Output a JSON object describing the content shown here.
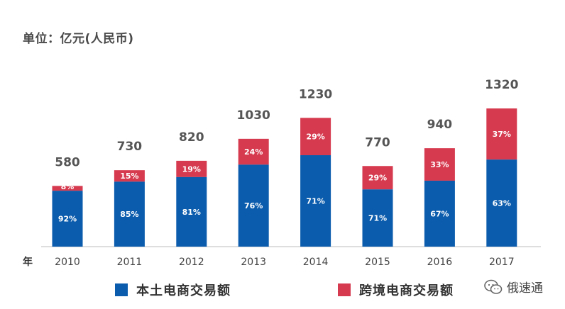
{
  "header": {
    "unit_label": "单位：亿元(人民币)"
  },
  "chart_data": {
    "type": "bar",
    "stacked": true,
    "x_axis_label": "年",
    "categories": [
      "2010",
      "2011",
      "2012",
      "2013",
      "2014",
      "2015",
      "2016",
      "2017"
    ],
    "totals": [
      580,
      730,
      820,
      1030,
      1230,
      770,
      940,
      1320
    ],
    "total_labels": [
      "580",
      "730",
      "820",
      "1030",
      "1230",
      "770",
      "940",
      "1320"
    ],
    "series": [
      {
        "name": "本土电商交易额",
        "color": "#0b5cad",
        "shares": [
          92,
          85,
          81,
          76,
          71,
          71,
          67,
          63
        ],
        "labels": [
          "92%",
          "85%",
          "81%",
          "76%",
          "71%",
          "71%",
          "67%",
          "63%"
        ]
      },
      {
        "name": "跨境电商交易额",
        "color": "#d63a4f",
        "shares": [
          8,
          15,
          19,
          24,
          29,
          29,
          33,
          37
        ],
        "labels": [
          "8%",
          "15%",
          "19%",
          "24%",
          "29%",
          "29%",
          "33%",
          "37%"
        ]
      }
    ],
    "legend_position": "bottom",
    "grid": false
  },
  "legend": {
    "items": [
      {
        "label": "本土电商交易额",
        "color": "#0b5cad"
      },
      {
        "label": "跨境电商交易额",
        "color": "#d63a4f"
      }
    ]
  },
  "watermark": {
    "text": "俄速通",
    "icon": "wechat-icon"
  }
}
